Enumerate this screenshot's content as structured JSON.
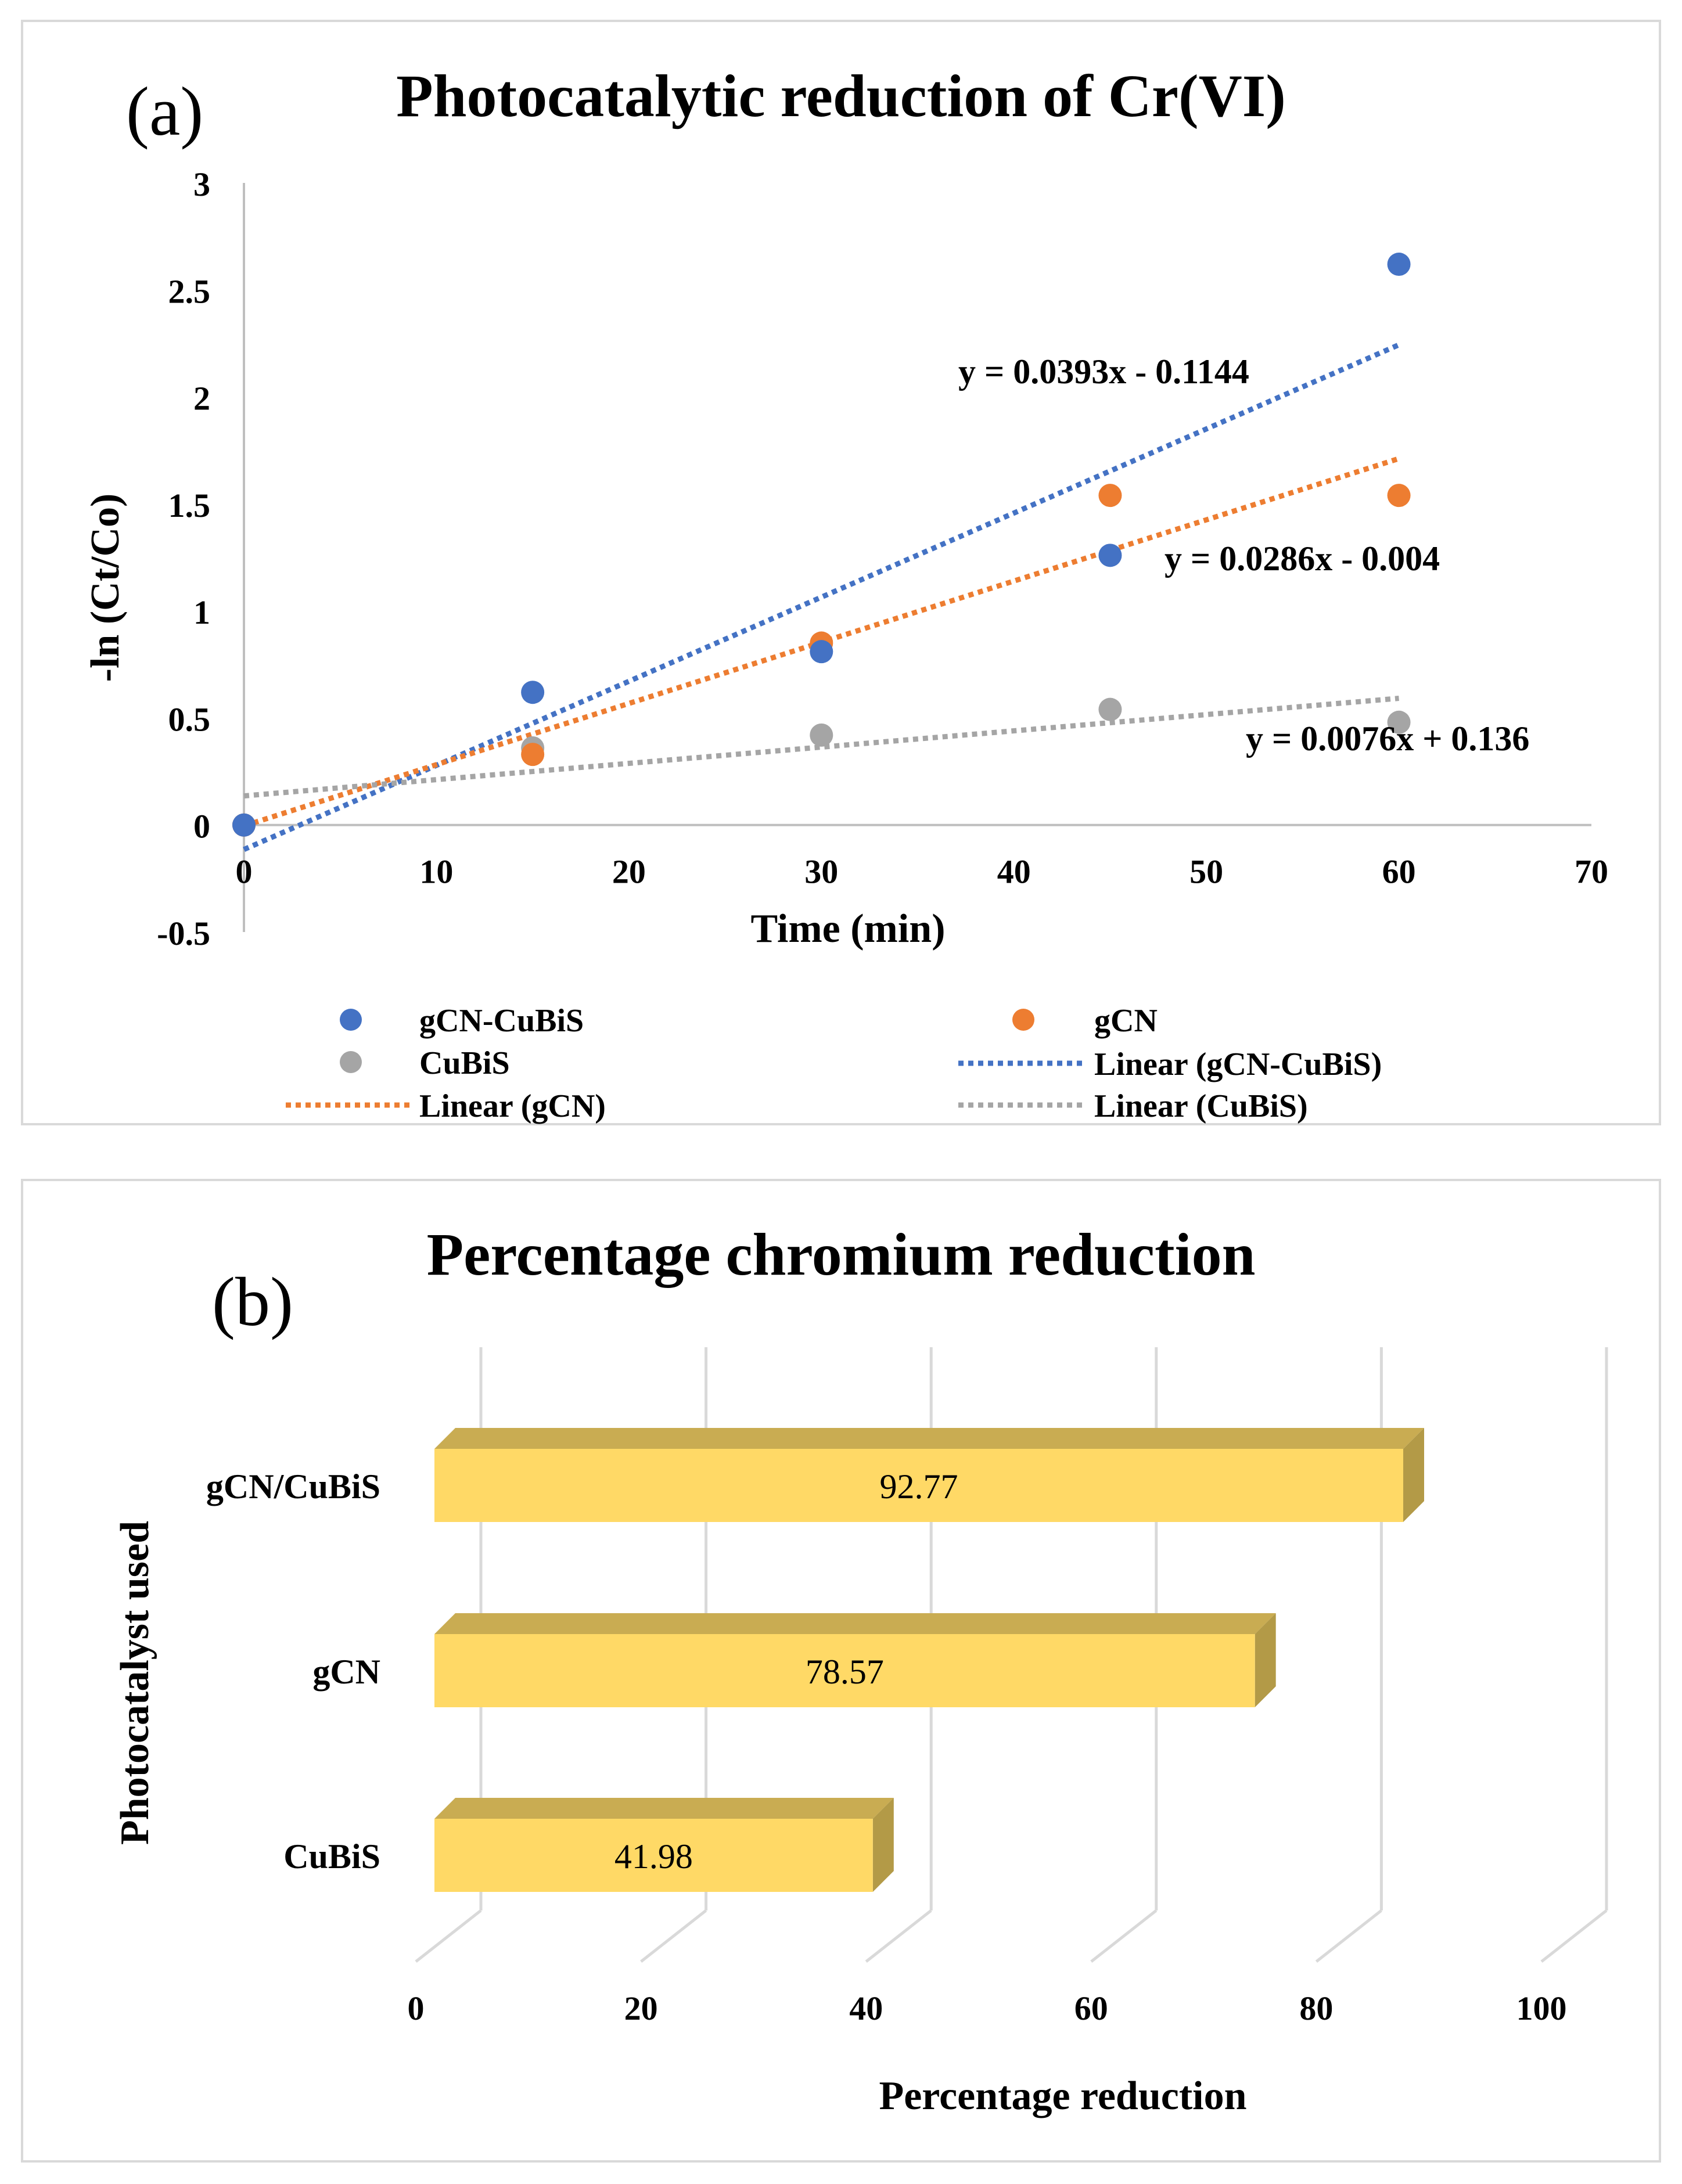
{
  "panel_a": {
    "label": "(a)",
    "chart_data": {
      "type": "scatter",
      "title": "Photocatalytic reduction of Cr(VI)",
      "xlabel": "Time (min)",
      "ylabel": "-ln (Ct/Co)",
      "xlim": [
        0,
        70
      ],
      "ylim": [
        -0.5,
        3
      ],
      "x_ticks": [
        "0",
        "10",
        "20",
        "30",
        "40",
        "50",
        "60",
        "70"
      ],
      "y_ticks": [
        "-0.5",
        "0",
        "0.5",
        "1",
        "1.5",
        "2",
        "2.5",
        "3"
      ],
      "x": [
        0,
        15,
        30,
        45,
        60
      ],
      "series": [
        {
          "name": "gCN-CuBiS",
          "color": "#4472C4",
          "values": [
            0,
            0.62,
            0.81,
            1.26,
            2.62
          ],
          "trendline": {
            "name": "Linear (gCN-CuBiS)",
            "slope": 0.0393,
            "intercept": -0.1144,
            "equation": "y = 0.0393x - 0.1144"
          }
        },
        {
          "name": "gCN",
          "color": "#ED7D31",
          "values": [
            0,
            0.33,
            0.85,
            1.54,
            1.54
          ],
          "trendline": {
            "name": "Linear (gCN)",
            "slope": 0.0286,
            "intercept": -0.004,
            "equation": "y = 0.0286x - 0.004"
          }
        },
        {
          "name": "CuBiS",
          "color": "#A5A5A5",
          "values": [
            0,
            0.36,
            0.42,
            0.54,
            0.48
          ],
          "trendline": {
            "name": "Linear (CuBiS)",
            "slope": 0.0076,
            "intercept": 0.136,
            "equation": "y = 0.0076x + 0.136"
          }
        }
      ],
      "legend": [
        {
          "label": "gCN-CuBiS",
          "kind": "marker",
          "color": "#4472C4"
        },
        {
          "label": "gCN",
          "kind": "marker",
          "color": "#ED7D31"
        },
        {
          "label": "CuBiS",
          "kind": "marker",
          "color": "#A5A5A5"
        },
        {
          "label": "Linear (gCN-CuBiS)",
          "kind": "line",
          "color": "#4472C4"
        },
        {
          "label": "Linear (gCN)",
          "kind": "line",
          "color": "#ED7D31"
        },
        {
          "label": "Linear (CuBiS)",
          "kind": "line",
          "color": "#A5A5A5"
        }
      ],
      "legend_position": "bottom"
    }
  },
  "panel_b": {
    "label": "(b)",
    "chart_data": {
      "type": "bar",
      "orientation": "horizontal",
      "style": "3d",
      "title": "Percentage chromium reduction",
      "xlabel": "Percentage reduction",
      "ylabel": "Photocatalyst used",
      "xlim": [
        0,
        100
      ],
      "x_ticks": [
        "0",
        "20",
        "40",
        "60",
        "80",
        "100"
      ],
      "categories": [
        "gCN/CuBiS",
        "gCN",
        "CuBiS"
      ],
      "values": [
        92.77,
        78.57,
        41.98
      ],
      "data_labels": [
        "92.77",
        "78.57",
        "41.98"
      ],
      "bar_color": "#FFD966",
      "bar_shade_color": "#B39A47"
    }
  }
}
